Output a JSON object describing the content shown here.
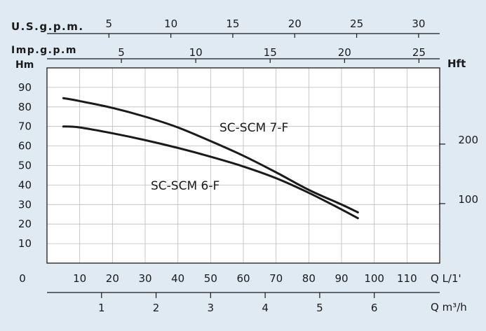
{
  "chart_data": {
    "type": "line",
    "title": "",
    "units": {
      "usgpm": "U.S.g.p.m.",
      "impgpm": "Imp.g.p.m",
      "hm": "Hm",
      "hft": "Hft",
      "q_ls": "Q L/1'",
      "q_m3h": "Q m³/h"
    },
    "xaxis": {
      "q_lmin": {
        "range": [
          0,
          120
        ],
        "ticks": [
          0,
          10,
          20,
          30,
          40,
          50,
          60,
          70,
          80,
          90,
          100,
          110
        ]
      },
      "q_m3h": {
        "ticks": [
          1,
          2,
          3,
          4,
          5,
          6
        ]
      },
      "usgpm": {
        "ticks": [
          5,
          10,
          15,
          20,
          25,
          30
        ]
      },
      "impgpm": {
        "ticks": [
          5,
          10,
          15,
          20,
          25
        ]
      }
    },
    "yaxis": {
      "hm": {
        "range": [
          0,
          100
        ],
        "ticks": [
          10,
          20,
          30,
          40,
          50,
          60,
          70,
          80,
          90
        ]
      },
      "hft": {
        "ticks": [
          100,
          200
        ]
      }
    },
    "grid": true,
    "series": [
      {
        "name": "SC-SCM 7-F",
        "color": "#1a1a1a",
        "x": [
          5,
          10,
          20,
          30,
          40,
          50,
          60,
          70,
          80,
          90,
          95
        ],
        "y": [
          84.5,
          83,
          79.5,
          75,
          69.5,
          62.5,
          55,
          46.5,
          37.5,
          30,
          26
        ]
      },
      {
        "name": "SC-SCM 6-F",
        "color": "#1a1a1a",
        "x": [
          5,
          10,
          20,
          30,
          40,
          50,
          60,
          70,
          80,
          90,
          95
        ],
        "y": [
          70,
          69.5,
          66.5,
          63,
          59,
          54.5,
          49.5,
          43.5,
          36,
          27.5,
          23
        ]
      }
    ]
  }
}
